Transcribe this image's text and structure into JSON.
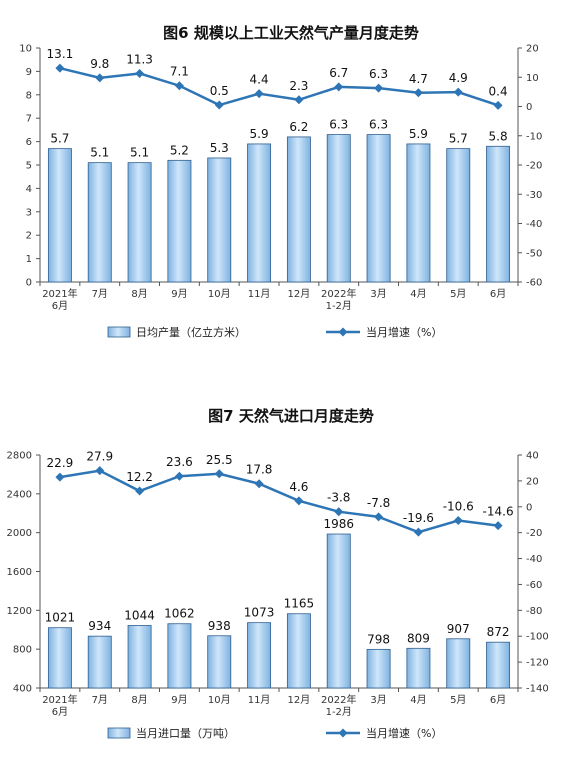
{
  "chart_data": [
    {
      "type": "bar+line",
      "title": "图6  规模以上工业天然气产量月度走势",
      "categories": [
        "2021年\n6月",
        "7月",
        "8月",
        "9月",
        "10月",
        "11月",
        "12月",
        "2022年\n1-2月",
        "3月",
        "4月",
        "5月",
        "6月"
      ],
      "bar_series": {
        "name": "日均产量（亿立方米）",
        "values": [
          5.7,
          5.1,
          5.1,
          5.2,
          5.3,
          5.9,
          6.2,
          6.3,
          6.3,
          5.9,
          5.7,
          5.8
        ]
      },
      "line_series": {
        "name": "当月增速（%）",
        "values": [
          13.1,
          9.8,
          11.3,
          7.1,
          0.5,
          4.4,
          2.3,
          6.7,
          6.3,
          4.7,
          4.9,
          0.4
        ]
      },
      "y_left": {
        "min": 0,
        "max": 10,
        "ticks": [
          0,
          1,
          2,
          3,
          4,
          5,
          6,
          7,
          8,
          9,
          10
        ]
      },
      "y_right": {
        "min": -60,
        "max": 20,
        "ticks": [
          -60,
          -50,
          -40,
          -30,
          -20,
          -10,
          0,
          10,
          20
        ]
      },
      "legend_position": "bottom",
      "bar_color": "#a9cff0",
      "line_color": "#2e75b6"
    },
    {
      "type": "bar+line",
      "title": "图7  天然气进口月度走势",
      "categories": [
        "2021年\n6月",
        "7月",
        "8月",
        "9月",
        "10月",
        "11月",
        "12月",
        "2022年\n1-2月",
        "3月",
        "4月",
        "5月",
        "6月"
      ],
      "bar_series": {
        "name": "当月进口量（万吨）",
        "values": [
          1021,
          934,
          1044,
          1062,
          938,
          1073,
          1165,
          1986,
          798,
          809,
          907,
          872
        ]
      },
      "line_series": {
        "name": "当月增速（%）",
        "values": [
          22.9,
          27.9,
          12.2,
          23.6,
          25.5,
          17.8,
          4.6,
          -3.8,
          -7.8,
          -19.6,
          -10.6,
          -14.6
        ]
      },
      "y_left": {
        "min": 400,
        "max": 2800,
        "ticks": [
          400,
          800,
          1200,
          1600,
          2000,
          2400,
          2800
        ]
      },
      "y_right": {
        "min": -140,
        "max": 40,
        "ticks": [
          -140,
          -120,
          -100,
          -80,
          -60,
          -40,
          -20,
          0,
          20,
          40
        ]
      },
      "legend_position": "bottom",
      "bar_color": "#a9cff0",
      "line_color": "#2e75b6"
    }
  ]
}
